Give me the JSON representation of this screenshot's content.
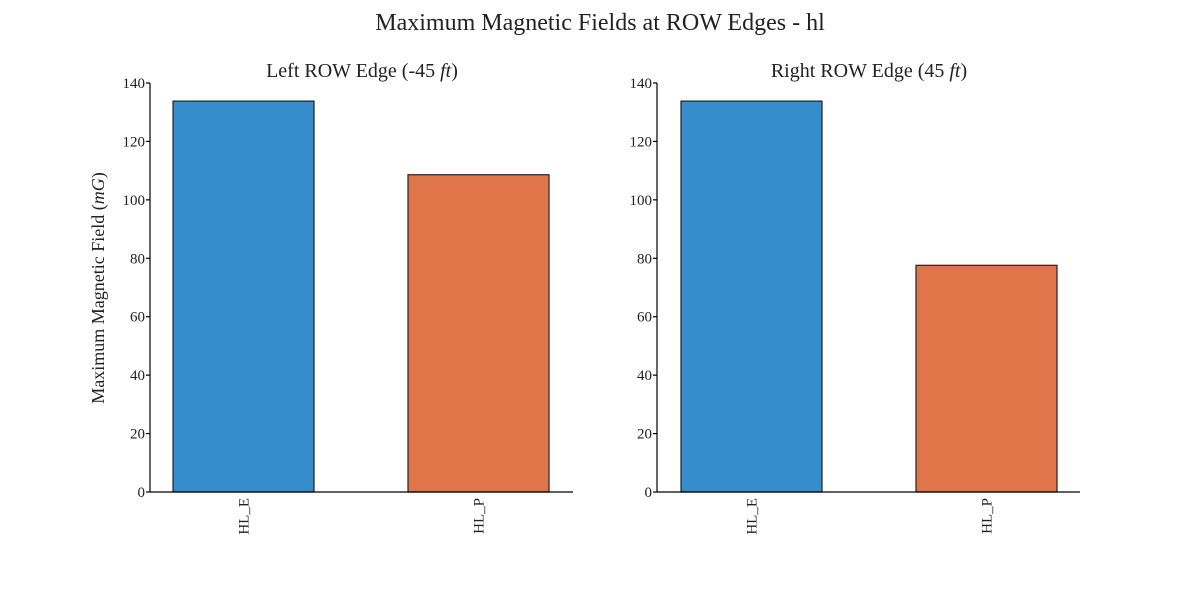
{
  "figure_title": "Maximum Magnetic Fields at ROW Edges - hl",
  "chart_data": [
    {
      "type": "bar",
      "title": "Left ROW Edge (-45 ft)",
      "title_text": "Left ROW Edge (-45 ",
      "title_unit": "ft",
      "title_close": ")",
      "ylabel": "Maximum Magnetic Field (mG)",
      "ylabel_text": "Maximum Magnetic Field (",
      "ylabel_unit": "mG",
      "ylabel_close": ")",
      "xlabel": "",
      "categories": [
        "HL_E",
        "HL_P"
      ],
      "values": [
        133.8,
        108.6
      ],
      "colors": [
        "#368dcb",
        "#e07549"
      ],
      "ylim": [
        0,
        140
      ],
      "yticks": [
        0,
        20,
        40,
        60,
        80,
        100,
        120,
        140
      ],
      "grid": false,
      "legend": "none"
    },
    {
      "type": "bar",
      "title": "Right ROW Edge (45 ft)",
      "title_text": "Right ROW Edge (45 ",
      "title_unit": "ft",
      "title_close": ")",
      "ylabel": "",
      "xlabel": "",
      "categories": [
        "HL_E",
        "HL_P"
      ],
      "values": [
        133.8,
        77.6
      ],
      "colors": [
        "#368dcb",
        "#e07549"
      ],
      "ylim": [
        0,
        140
      ],
      "yticks": [
        0,
        20,
        40,
        60,
        80,
        100,
        120,
        140
      ],
      "grid": false,
      "legend": "none"
    }
  ]
}
